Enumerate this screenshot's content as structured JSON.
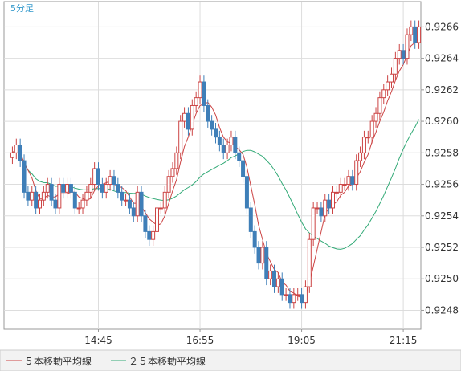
{
  "chart_data": {
    "type": "candlestick",
    "timeframe_label": "5分足",
    "x_tick_labels": [
      "14:45",
      "16:55",
      "19:05",
      "21:15"
    ],
    "x_tick_index": [
      22,
      48,
      74,
      100
    ],
    "y_ticks": [
      0.9248,
      0.925,
      0.9252,
      0.9254,
      0.9256,
      0.9258,
      0.926,
      0.9262,
      0.9264,
      0.9266
    ],
    "ylim": [
      0.92468,
      0.92676
    ],
    "grid": true,
    "colors": {
      "up": "#cc4444",
      "down": "#3f7fb8",
      "ma5": "#cc4444",
      "ma25": "#33aa77",
      "grid": "#dddddd",
      "axis": "#999999"
    },
    "legend": [
      {
        "label": "５本移動平均線",
        "color": "#cc4444"
      },
      {
        "label": "２５本移動平均線",
        "color": "#33aa77"
      }
    ],
    "closes": [
      0.9258,
      0.92585,
      0.92575,
      0.92555,
      0.9255,
      0.92555,
      0.92545,
      0.9255,
      0.92555,
      0.9256,
      0.9255,
      0.92545,
      0.9256,
      0.92555,
      0.9256,
      0.92555,
      0.92545,
      0.92545,
      0.9255,
      0.92555,
      0.9256,
      0.9257,
      0.9256,
      0.92555,
      0.9256,
      0.92565,
      0.9256,
      0.92555,
      0.9255,
      0.9255,
      0.92545,
      0.9254,
      0.92555,
      0.9254,
      0.9253,
      0.92525,
      0.9253,
      0.92545,
      0.92545,
      0.92555,
      0.92565,
      0.9257,
      0.9258,
      0.926,
      0.92605,
      0.92595,
      0.9261,
      0.92615,
      0.92625,
      0.9261,
      0.926,
      0.92595,
      0.9259,
      0.92585,
      0.9258,
      0.92585,
      0.9259,
      0.9258,
      0.92575,
      0.92565,
      0.92545,
      0.9253,
      0.9252,
      0.9251,
      0.9252,
      0.925,
      0.92505,
      0.92495,
      0.925,
      0.9249,
      0.9249,
      0.92485,
      0.9249,
      0.9249,
      0.92485,
      0.92495,
      0.92525,
      0.92545,
      0.92545,
      0.9254,
      0.9255,
      0.92545,
      0.92555,
      0.92555,
      0.9256,
      0.9256,
      0.92565,
      0.9256,
      0.92575,
      0.9258,
      0.9259,
      0.9259,
      0.926,
      0.92605,
      0.92615,
      0.9262,
      0.92625,
      0.9263,
      0.9264,
      0.92645,
      0.9264,
      0.92655,
      0.9266,
      0.9265,
      0.9266
    ]
  }
}
